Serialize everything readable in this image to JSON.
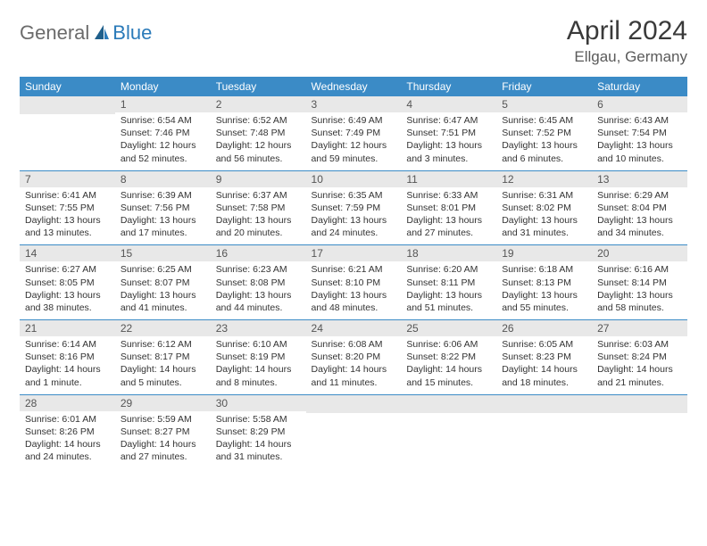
{
  "brand": {
    "general": "General",
    "blue": "Blue"
  },
  "title": {
    "month": "April 2024",
    "location": "Ellgau, Germany"
  },
  "colors": {
    "header_bg": "#3b8bc6",
    "daynum_bg": "#e8e8e8",
    "rule": "#3b8bc6",
    "text": "#333333"
  },
  "dow": [
    "Sunday",
    "Monday",
    "Tuesday",
    "Wednesday",
    "Thursday",
    "Friday",
    "Saturday"
  ],
  "weeks": [
    [
      {
        "n": "",
        "sunrise": "",
        "sunset": "",
        "daylight": ""
      },
      {
        "n": "1",
        "sunrise": "Sunrise: 6:54 AM",
        "sunset": "Sunset: 7:46 PM",
        "daylight": "Daylight: 12 hours and 52 minutes."
      },
      {
        "n": "2",
        "sunrise": "Sunrise: 6:52 AM",
        "sunset": "Sunset: 7:48 PM",
        "daylight": "Daylight: 12 hours and 56 minutes."
      },
      {
        "n": "3",
        "sunrise": "Sunrise: 6:49 AM",
        "sunset": "Sunset: 7:49 PM",
        "daylight": "Daylight: 12 hours and 59 minutes."
      },
      {
        "n": "4",
        "sunrise": "Sunrise: 6:47 AM",
        "sunset": "Sunset: 7:51 PM",
        "daylight": "Daylight: 13 hours and 3 minutes."
      },
      {
        "n": "5",
        "sunrise": "Sunrise: 6:45 AM",
        "sunset": "Sunset: 7:52 PM",
        "daylight": "Daylight: 13 hours and 6 minutes."
      },
      {
        "n": "6",
        "sunrise": "Sunrise: 6:43 AM",
        "sunset": "Sunset: 7:54 PM",
        "daylight": "Daylight: 13 hours and 10 minutes."
      }
    ],
    [
      {
        "n": "7",
        "sunrise": "Sunrise: 6:41 AM",
        "sunset": "Sunset: 7:55 PM",
        "daylight": "Daylight: 13 hours and 13 minutes."
      },
      {
        "n": "8",
        "sunrise": "Sunrise: 6:39 AM",
        "sunset": "Sunset: 7:56 PM",
        "daylight": "Daylight: 13 hours and 17 minutes."
      },
      {
        "n": "9",
        "sunrise": "Sunrise: 6:37 AM",
        "sunset": "Sunset: 7:58 PM",
        "daylight": "Daylight: 13 hours and 20 minutes."
      },
      {
        "n": "10",
        "sunrise": "Sunrise: 6:35 AM",
        "sunset": "Sunset: 7:59 PM",
        "daylight": "Daylight: 13 hours and 24 minutes."
      },
      {
        "n": "11",
        "sunrise": "Sunrise: 6:33 AM",
        "sunset": "Sunset: 8:01 PM",
        "daylight": "Daylight: 13 hours and 27 minutes."
      },
      {
        "n": "12",
        "sunrise": "Sunrise: 6:31 AM",
        "sunset": "Sunset: 8:02 PM",
        "daylight": "Daylight: 13 hours and 31 minutes."
      },
      {
        "n": "13",
        "sunrise": "Sunrise: 6:29 AM",
        "sunset": "Sunset: 8:04 PM",
        "daylight": "Daylight: 13 hours and 34 minutes."
      }
    ],
    [
      {
        "n": "14",
        "sunrise": "Sunrise: 6:27 AM",
        "sunset": "Sunset: 8:05 PM",
        "daylight": "Daylight: 13 hours and 38 minutes."
      },
      {
        "n": "15",
        "sunrise": "Sunrise: 6:25 AM",
        "sunset": "Sunset: 8:07 PM",
        "daylight": "Daylight: 13 hours and 41 minutes."
      },
      {
        "n": "16",
        "sunrise": "Sunrise: 6:23 AM",
        "sunset": "Sunset: 8:08 PM",
        "daylight": "Daylight: 13 hours and 44 minutes."
      },
      {
        "n": "17",
        "sunrise": "Sunrise: 6:21 AM",
        "sunset": "Sunset: 8:10 PM",
        "daylight": "Daylight: 13 hours and 48 minutes."
      },
      {
        "n": "18",
        "sunrise": "Sunrise: 6:20 AM",
        "sunset": "Sunset: 8:11 PM",
        "daylight": "Daylight: 13 hours and 51 minutes."
      },
      {
        "n": "19",
        "sunrise": "Sunrise: 6:18 AM",
        "sunset": "Sunset: 8:13 PM",
        "daylight": "Daylight: 13 hours and 55 minutes."
      },
      {
        "n": "20",
        "sunrise": "Sunrise: 6:16 AM",
        "sunset": "Sunset: 8:14 PM",
        "daylight": "Daylight: 13 hours and 58 minutes."
      }
    ],
    [
      {
        "n": "21",
        "sunrise": "Sunrise: 6:14 AM",
        "sunset": "Sunset: 8:16 PM",
        "daylight": "Daylight: 14 hours and 1 minute."
      },
      {
        "n": "22",
        "sunrise": "Sunrise: 6:12 AM",
        "sunset": "Sunset: 8:17 PM",
        "daylight": "Daylight: 14 hours and 5 minutes."
      },
      {
        "n": "23",
        "sunrise": "Sunrise: 6:10 AM",
        "sunset": "Sunset: 8:19 PM",
        "daylight": "Daylight: 14 hours and 8 minutes."
      },
      {
        "n": "24",
        "sunrise": "Sunrise: 6:08 AM",
        "sunset": "Sunset: 8:20 PM",
        "daylight": "Daylight: 14 hours and 11 minutes."
      },
      {
        "n": "25",
        "sunrise": "Sunrise: 6:06 AM",
        "sunset": "Sunset: 8:22 PM",
        "daylight": "Daylight: 14 hours and 15 minutes."
      },
      {
        "n": "26",
        "sunrise": "Sunrise: 6:05 AM",
        "sunset": "Sunset: 8:23 PM",
        "daylight": "Daylight: 14 hours and 18 minutes."
      },
      {
        "n": "27",
        "sunrise": "Sunrise: 6:03 AM",
        "sunset": "Sunset: 8:24 PM",
        "daylight": "Daylight: 14 hours and 21 minutes."
      }
    ],
    [
      {
        "n": "28",
        "sunrise": "Sunrise: 6:01 AM",
        "sunset": "Sunset: 8:26 PM",
        "daylight": "Daylight: 14 hours and 24 minutes."
      },
      {
        "n": "29",
        "sunrise": "Sunrise: 5:59 AM",
        "sunset": "Sunset: 8:27 PM",
        "daylight": "Daylight: 14 hours and 27 minutes."
      },
      {
        "n": "30",
        "sunrise": "Sunrise: 5:58 AM",
        "sunset": "Sunset: 8:29 PM",
        "daylight": "Daylight: 14 hours and 31 minutes."
      },
      {
        "n": "",
        "sunrise": "",
        "sunset": "",
        "daylight": ""
      },
      {
        "n": "",
        "sunrise": "",
        "sunset": "",
        "daylight": ""
      },
      {
        "n": "",
        "sunrise": "",
        "sunset": "",
        "daylight": ""
      },
      {
        "n": "",
        "sunrise": "",
        "sunset": "",
        "daylight": ""
      }
    ]
  ]
}
